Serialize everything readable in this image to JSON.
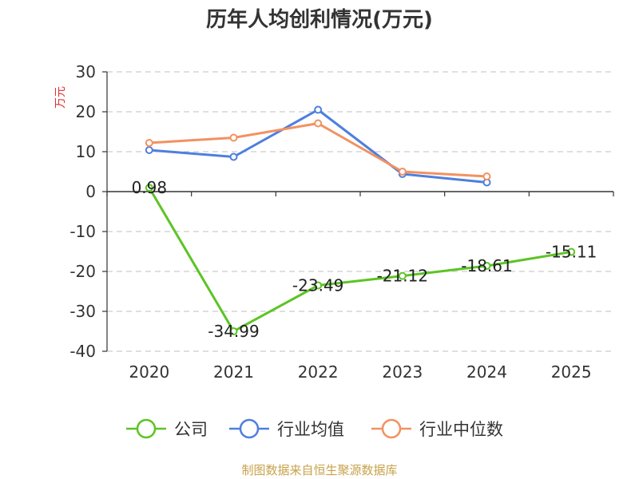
{
  "chart_data": {
    "type": "line",
    "title": "历年人均创利情况(万元)",
    "ylabel": "万元",
    "xlabel": "",
    "categories": [
      "2020",
      "2021",
      "2022",
      "2023",
      "2024",
      "2025"
    ],
    "ylim": [
      -40,
      30
    ],
    "yticks": [
      30,
      20,
      10,
      0,
      -10,
      -20,
      -30,
      -40
    ],
    "ytick_labels": [
      "30",
      "20",
      "10",
      "0",
      "-10",
      "-20",
      "-30",
      "-40"
    ],
    "grid": true,
    "legend_position": "bottom",
    "series": [
      {
        "name": "公司",
        "color": "#5cc424",
        "values": [
          0.98,
          -34.99,
          -23.49,
          -21.12,
          -18.61,
          -15.11
        ],
        "labels": [
          "0.98",
          "-34.99",
          "-23.49",
          "-21.12",
          "-18.61",
          "-15.11"
        ]
      },
      {
        "name": "行业均值",
        "color": "#4e7fde",
        "values": [
          10.4,
          8.7,
          20.5,
          4.4,
          2.3,
          null
        ]
      },
      {
        "name": "行业中位数",
        "color": "#f39160",
        "values": [
          12.2,
          13.5,
          17.1,
          5.0,
          3.8,
          null
        ]
      }
    ]
  },
  "source_text": "制图数据来自恒生聚源数据库"
}
